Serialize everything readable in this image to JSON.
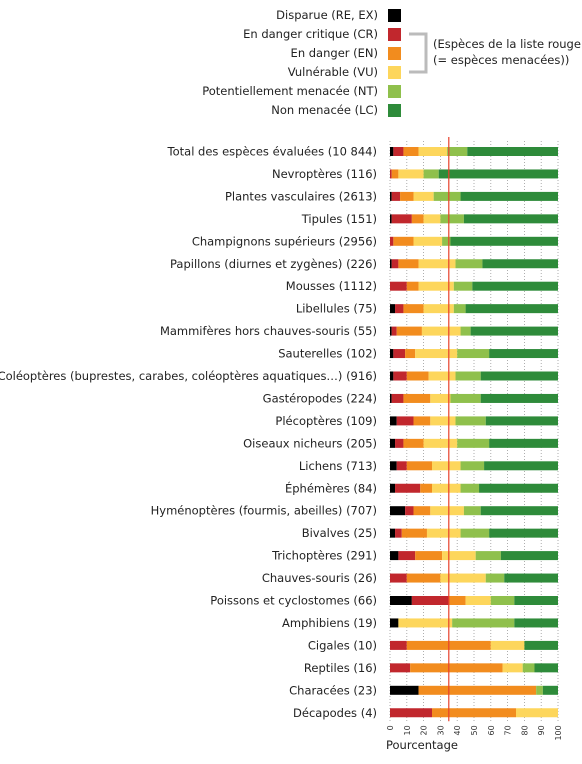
{
  "chart_data": {
    "type": "bar",
    "orientation": "horizontal",
    "stacked": true,
    "xlabel": "Pourcentage",
    "xlim": [
      0,
      100
    ],
    "xticks": [
      0,
      10,
      20,
      30,
      40,
      50,
      60,
      70,
      80,
      90,
      100
    ],
    "reference_line": {
      "value": 35,
      "color": "#e8402b"
    },
    "legend": {
      "placement": "top",
      "items": [
        {
          "key": "RE_EX",
          "label": "Disparue (RE, EX)",
          "color": "#000000"
        },
        {
          "key": "CR",
          "label": "En danger critique (CR)",
          "color": "#c1272d"
        },
        {
          "key": "EN",
          "label": "En danger (EN)",
          "color": "#f28c1e"
        },
        {
          "key": "VU",
          "label": "Vulnérable (VU)",
          "color": "#fdd65c"
        },
        {
          "key": "NT",
          "label": "Potentiellement menacée (NT)",
          "color": "#8fc04c"
        },
        {
          "key": "LC",
          "label": "Non menacée (LC)",
          "color": "#2e8b3a"
        }
      ],
      "bracket_text": [
        "(Espèces de la liste rouge",
        "(= espèces menacées))"
      ]
    },
    "categories": [
      "Total des espèces évaluées (10 844)",
      "Nevroptères (116)",
      "Plantes vasculaires (2613)",
      "Tipules (151)",
      "Champignons supérieurs (2956)",
      "Papillons (diurnes et zygènes) (226)",
      "Mousses (1112)",
      "Libellules (75)",
      "Mammifères hors chauves-souris (55)",
      "Sauterelles (102)",
      "Coléoptères (buprestes, carabes, coléoptères aquatiques…) (916)",
      "Gastéropodes (224)",
      "Plécoptères (109)",
      "Oiseaux nicheurs (205)",
      "Lichens (713)",
      "Éphémères (84)",
      "Hyménoptères (fourmis, abeilles) (707)",
      "Bivalves (25)",
      "Trichoptères (291)",
      "Chauves-souris (26)",
      "Poissons et cyclostomes (66)",
      "Amphibiens (19)",
      "Cigales (10)",
      "Reptiles (16)",
      "Characées (23)",
      "Décapodes (4)"
    ],
    "series": [
      {
        "name": "Disparue (RE, EX)",
        "values": [
          2,
          0,
          1,
          1,
          0,
          1,
          0,
          3,
          1,
          2,
          2,
          1,
          4,
          3,
          4,
          3,
          9,
          3,
          5,
          0,
          13,
          5,
          0,
          0,
          17,
          0
        ]
      },
      {
        "name": "En danger critique (CR)",
        "values": [
          6,
          1,
          5,
          12,
          2,
          4,
          10,
          5,
          3,
          7,
          8,
          7,
          10,
          5,
          6,
          15,
          5,
          4,
          10,
          10,
          22,
          0,
          10,
          12,
          0,
          25
        ]
      },
      {
        "name": "En danger (EN)",
        "values": [
          9,
          4,
          8,
          7,
          12,
          12,
          7,
          12,
          15,
          6,
          13,
          16,
          10,
          12,
          15,
          7,
          10,
          15,
          16,
          20,
          10,
          0,
          50,
          55,
          70,
          50
        ]
      },
      {
        "name": "Vulnérable (VU)",
        "values": [
          17,
          15,
          12,
          10,
          17,
          22,
          21,
          18,
          23,
          25,
          16,
          12,
          15,
          20,
          17,
          17,
          20,
          20,
          20,
          27,
          15,
          32,
          20,
          12,
          0,
          25
        ]
      },
      {
        "name": "Potentiellement menacée (NT)",
        "values": [
          12,
          9,
          16,
          14,
          5,
          16,
          11,
          7,
          6,
          19,
          15,
          18,
          18,
          19,
          14,
          11,
          10,
          17,
          15,
          11,
          14,
          37,
          0,
          7,
          4,
          0
        ]
      },
      {
        "name": "Non menacée (LC)",
        "values": [
          54,
          71,
          58,
          56,
          64,
          45,
          51,
          55,
          52,
          41,
          46,
          46,
          43,
          41,
          44,
          47,
          46,
          41,
          34,
          32,
          26,
          26,
          20,
          14,
          9,
          0
        ]
      }
    ]
  }
}
